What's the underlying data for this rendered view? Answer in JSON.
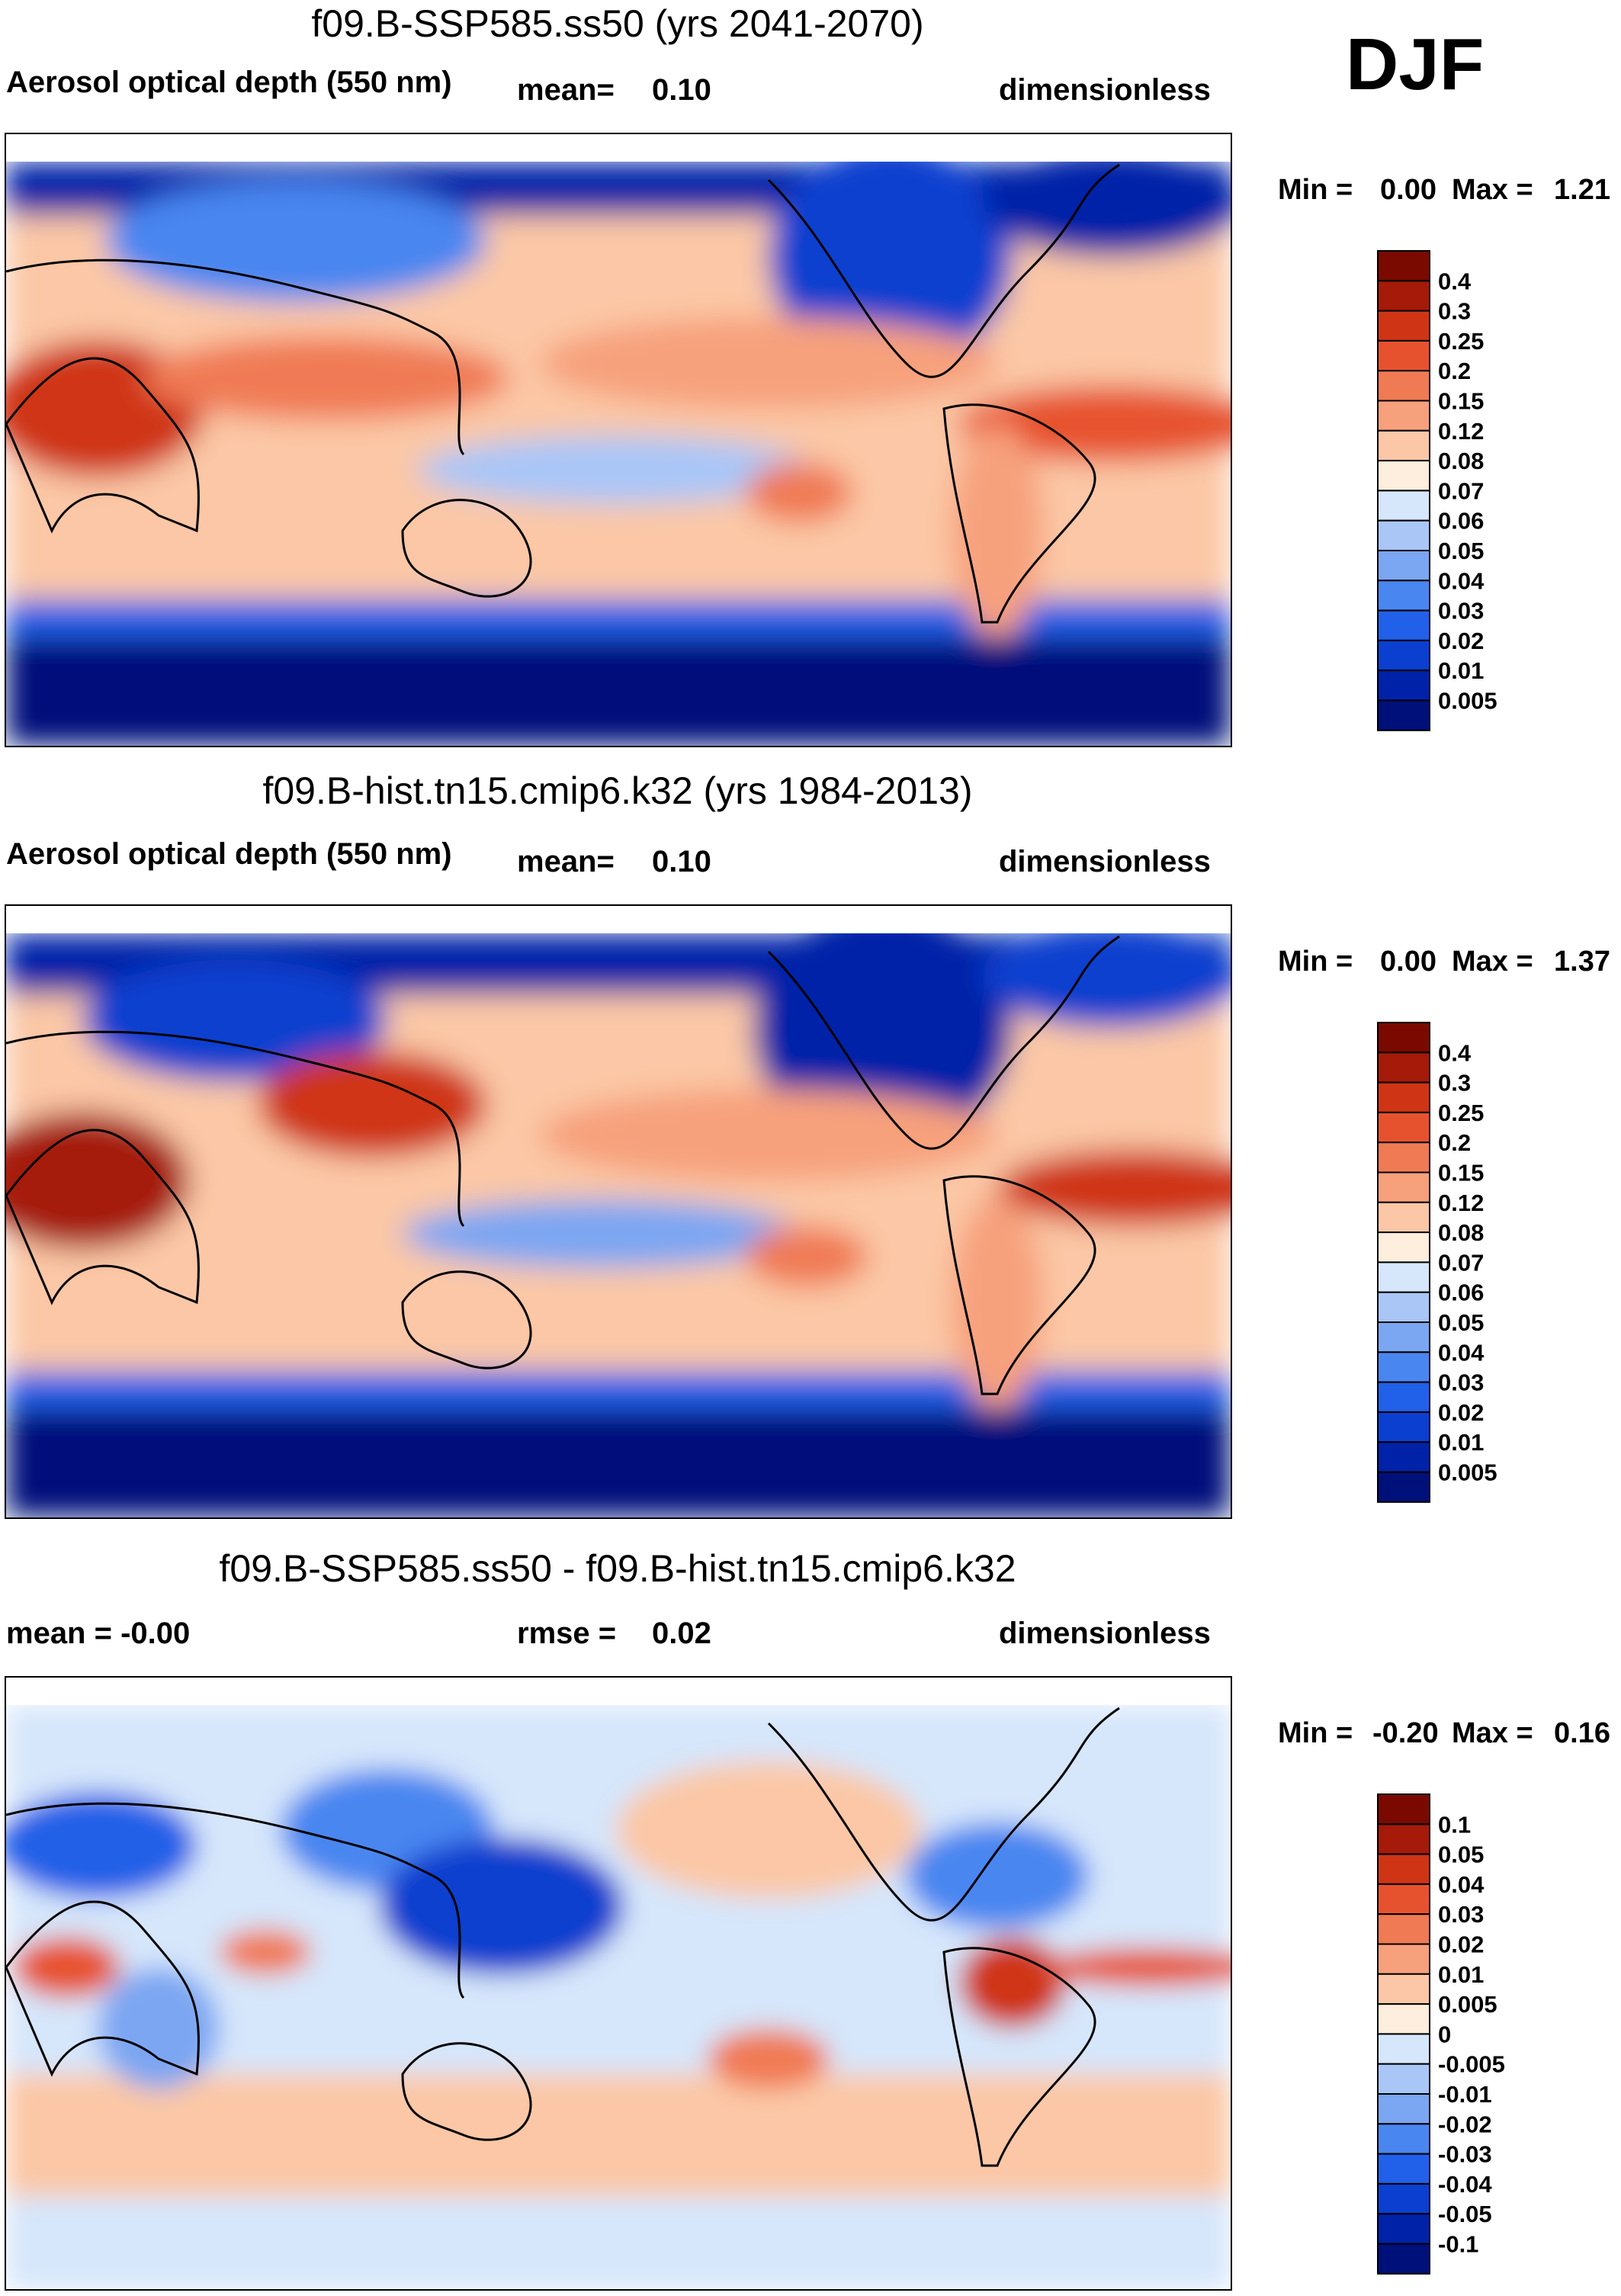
{
  "season_label": "DJF",
  "colors": {
    "abs_scale": [
      "#00107a",
      "#0022a8",
      "#0b3fcf",
      "#2160e8",
      "#4a86f0",
      "#7ba6f2",
      "#a9c6f7",
      "#d6e6fb",
      "#fdeedd",
      "#fbc7a6",
      "#f7a07c",
      "#f07a54",
      "#e7522e",
      "#cf3514",
      "#a51a08",
      "#7a0a00"
    ],
    "diff_scale": [
      "#00107a",
      "#0022a8",
      "#0b3fcf",
      "#2160e8",
      "#4a86f0",
      "#7ba6f2",
      "#a9c6f7",
      "#d6e6fb",
      "#fdeedd",
      "#fbc7a6",
      "#f7a07c",
      "#f07a54",
      "#e7522e",
      "#cf3514",
      "#a51a08",
      "#7a0a00"
    ]
  },
  "panels": [
    {
      "title": "f09.B-SSP585.ss50 (yrs 2041-2070)",
      "left_label": "Aerosol optical depth (550 nm)",
      "center_label": "mean=",
      "center_value": "0.10",
      "units": "dimensionless",
      "min_label": "Min =",
      "min_value": "0.00",
      "max_label": "Max =",
      "max_value": "1.21"
    },
    {
      "title": "f09.B-hist.tn15.cmip6.k32 (yrs 1984-2013)",
      "left_label": "Aerosol optical depth (550 nm)",
      "center_label": "mean=",
      "center_value": "0.10",
      "units": "dimensionless",
      "min_label": "Min =",
      "min_value": "0.00",
      "max_label": "Max =",
      "max_value": "1.37"
    },
    {
      "title": "f09.B-SSP585.ss50 - f09.B-hist.tn15.cmip6.k32",
      "left_label": "mean =  -0.00",
      "center_label": "rmse =",
      "center_value": "0.02",
      "units": "dimensionless",
      "min_label": "Min =",
      "min_value": "-0.20",
      "max_label": "Max =",
      "max_value": "0.16"
    }
  ],
  "chart_data": [
    {
      "type": "heatmap",
      "title": "f09.B-SSP585.ss50 (yrs 2041-2070)",
      "variable": "Aerosol optical depth (550 nm)",
      "units": "dimensionless",
      "season": "DJF",
      "mean": 0.1,
      "min": 0.0,
      "max": 1.21,
      "colorbar_levels": [
        "0.4",
        "0.3",
        "0.25",
        "0.2",
        "0.15",
        "0.12",
        "0.08",
        "0.07",
        "0.06",
        "0.05",
        "0.04",
        "0.03",
        "0.02",
        "0.01",
        "0.005"
      ]
    },
    {
      "type": "heatmap",
      "title": "f09.B-hist.tn15.cmip6.k32 (yrs 1984-2013)",
      "variable": "Aerosol optical depth (550 nm)",
      "units": "dimensionless",
      "season": "DJF",
      "mean": 0.1,
      "min": 0.0,
      "max": 1.37,
      "colorbar_levels": [
        "0.4",
        "0.3",
        "0.25",
        "0.2",
        "0.15",
        "0.12",
        "0.08",
        "0.07",
        "0.06",
        "0.05",
        "0.04",
        "0.03",
        "0.02",
        "0.01",
        "0.005"
      ]
    },
    {
      "type": "heatmap",
      "title": "f09.B-SSP585.ss50 - f09.B-hist.tn15.cmip6.k32",
      "units": "dimensionless",
      "season": "DJF",
      "mean": -0.0,
      "rmse": 0.02,
      "min": -0.2,
      "max": 0.16,
      "colorbar_levels": [
        "0.1",
        "0.05",
        "0.04",
        "0.03",
        "0.02",
        "0.01",
        "0.005",
        "0",
        "-0.005",
        "-0.01",
        "-0.02",
        "-0.03",
        "-0.04",
        "-0.05",
        "-0.1"
      ]
    }
  ]
}
